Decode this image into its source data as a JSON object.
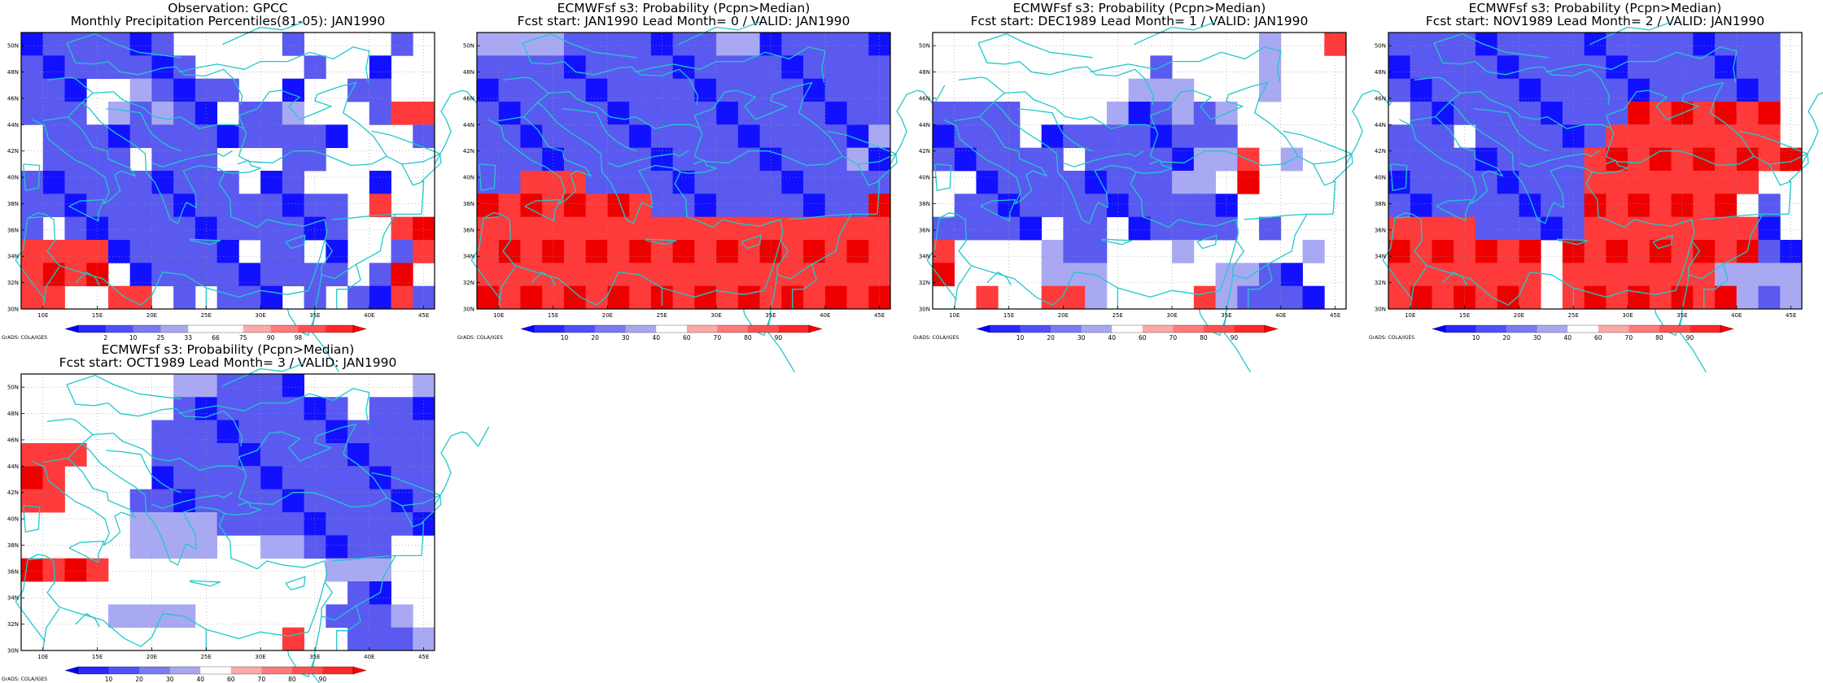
{
  "region": {
    "lon_min": 8,
    "lon_max": 46,
    "lat_min": 30,
    "lat_max": 51,
    "lon_ticks": [
      10,
      15,
      20,
      25,
      30,
      35,
      40,
      45
    ],
    "lat_ticks": [
      30,
      32,
      34,
      36,
      38,
      40,
      42,
      44,
      46,
      48,
      50
    ],
    "lon_tick_labels": [
      "10E",
      "15E",
      "20E",
      "25E",
      "30E",
      "35E",
      "40E",
      "45E"
    ],
    "lat_tick_labels": [
      "30N",
      "32N",
      "34N",
      "36N",
      "38N",
      "40N",
      "42N",
      "44N",
      "46N",
      "48N",
      "50N"
    ],
    "coastline_color": "#20c8cc",
    "gridline_style": "dotted"
  },
  "credit": "GrADS: COLA/IGES",
  "observation_legend": {
    "ticks": [
      "2",
      "10",
      "25",
      "33",
      "66",
      "75",
      "90",
      "98"
    ],
    "colors": [
      "#0000ff",
      "#2828ff",
      "#5050ff",
      "#7a7af2",
      "#a8a8f0",
      "#ffffff",
      "#ffffff",
      "#ffa8a8",
      "#ff7a7a",
      "#ff5050",
      "#ff2828",
      "#ff0000"
    ]
  },
  "forecast_legend": {
    "ticks": [
      "10",
      "20",
      "30",
      "40",
      "60",
      "70",
      "80",
      "90"
    ],
    "colors": [
      "#0000ff",
      "#2828ff",
      "#5050ff",
      "#7a7af2",
      "#a8a8f0",
      "#ffffff",
      "#ffa8a8",
      "#ff7a7a",
      "#ff5050",
      "#ff2828",
      "#ff0000"
    ]
  },
  "panels": [
    {
      "title_line1": "Observation: GPCC",
      "title_line2": "Monthly Precipitation Percentiles(81-05): JAN1990",
      "legend": "observation",
      "chart_data": {
        "type": "heatmap",
        "cell_size_deg": 2.5,
        "grid": [
          "BBBBBBB00000B0000B0",
          "BBBBBBBB00000B00B00",
          "BBB00LBBBB00B00BB00",
          "BBB0LBLBB0BBL000BRR",
          "0BBBBBBBBBBBBBB000B",
          "0BBBB0BBB000BB00000",
          "BBBBBBBBBB0BB000B00",
          "BBBBBBBBBBBBBBB0R00",
          "B0BBBBBBBBBBBBB00RR",
          "RRRRBBBBBB0BB0B00BR",
          "RRRR0BBBBBBBBBB0BR0",
          "RR00RR0B0BBB0B0BBRB"
        ]
      }
    },
    {
      "title_line1": "ECMWFsf s3: Probability (Pcpn>Median)",
      "title_line2": "Fcst start: JAN1990    Lead Month= 0 / VALID: JAN1990",
      "legend": "forecast",
      "chart_data": {
        "type": "heatmap",
        "cell_size_deg": 2.5,
        "grid": [
          "LLLLBBBBBBBLLBBBBBB",
          "BBBBBBBBBBBBBBBBBBB",
          "BBBBBBBBBBBBBBBBBBB",
          "BBBBBBBBBBBBBBBBBBB",
          "BBBBBBBBBBBBBBBBBBL",
          "BBBBBBBBBBBBBBBBBLB",
          "BBRRRBBBBBBBBBBBBBB",
          "RRRRRRRRBBBBBBBBBBR",
          "RRRRRRRRRRRRRRRRRRR",
          "RRRRRRRRRRRRRRRRRRR",
          "RRRRRRRRRRRRRRRRRRR",
          "RRRRRRRRRRRRRRRRRRR"
        ]
      }
    },
    {
      "title_line1": "ECMWFsf s3: Probability (Pcpn>Median)",
      "title_line2": "Fcst start: DEC1989    Lead Month= 1 / VALID: JAN1990",
      "legend": "forecast",
      "chart_data": {
        "type": "heatmap",
        "cell_size_deg": 2.5,
        "grid": [
          "000000000000000L00R",
          "0000000000B0000L000",
          "000000000LLL000L000",
          "BBBB0000LBBLBL00000",
          "BBBB0BBBBBBBBB00000",
          "BBBBBB0BBBBBLLR0L00",
          "00BBBBBBBBBLL0R0000",
          "0BBBBBBBBBBBBB00000",
          "BBBBB0BB0BBBBB0B000",
          "R0000LBB000L00000L0",
          "R0000LLL00000LLBB00",
          "00R00RRL0000RLBBBB0"
        ]
      }
    },
    {
      "title_line1": "ECMWFsf s3: Probability (Pcpn>Median)",
      "title_line2": "Fcst start: NOV1989    Lead Month= 2 / VALID: JAN1990",
      "legend": "forecast",
      "chart_data": {
        "type": "heatmap",
        "cell_size_deg": 2.5,
        "grid": [
          "BBBBBBBBBBBBBBBBBB0",
          "BBBBBBBBBBBBBBBBBB0",
          "BBBBBBBBBBBBBBBBBB0",
          "0BBBBBBBBBBRRRRRRR0",
          "BBB0BBBBBBRRRRRRRR0",
          "BBBBBBBBBRRRRRRRRRR",
          "BBBBBBBBBRRRRRRRR00",
          "BBBBBBBBBRRRRRRR0B0",
          "RRRRBBBBBRRRRRRRRB0",
          "RRRRRRR0RRRRRRRRRBB",
          "RRRRRRR0RRRRRRRLLLL",
          "RRRRRRR0RRRRRRRRLBL"
        ]
      }
    },
    {
      "title_line1": "ECMWFsf s3: Probability (Pcpn>Median)",
      "title_line2": "Fcst start: OCT1989    Lead Month= 3 / VALID: JAN1990",
      "legend": "forecast",
      "chart_data": {
        "type": "heatmap",
        "cell_size_deg": 2.5,
        "grid": [
          "0000000LLBBBB00000L",
          "0000000BBBBBBBB0BBB",
          "000000BBBBBBBBBBBBB",
          "RRR000BBBBBBBBBBBBB",
          "RR0000BBBBBBBBBBBBB",
          "RR000BBBBBBBBBBBBBB",
          "00000LLLLBBBBBBBBBB",
          "00000LLLL00LLBBBB00",
          "RRRR0000000000LLL00",
          "000000000000000BB00",
          "0000LLLL000000BBBL0",
          "000000000000R00BBBL"
        ]
      }
    }
  ]
}
